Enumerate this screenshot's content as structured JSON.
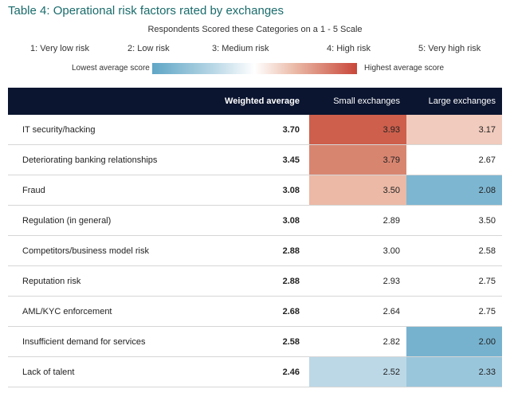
{
  "title": "Table 4: Operational risk factors rated by exchanges",
  "subtitle": "Respondents Scored these Categories on a 1 - 5 Scale",
  "scale": [
    "1: Very low risk",
    "2: Low risk",
    "3: Medium risk",
    "4: High risk",
    "5: Very high risk"
  ],
  "legend": {
    "low_label": "Lowest average score",
    "high_label": "Highest average score",
    "low_color": "#5fa6c6",
    "high_color": "#c8473a"
  },
  "table": {
    "headers": {
      "name": "",
      "weighted": "Weighted average",
      "small": "Small exchanges",
      "large": "Large exchanges"
    },
    "rows": [
      {
        "name": "IT security/hacking",
        "weighted": "3.70",
        "small": "3.93",
        "large": "3.17",
        "small_color": "#cd5f4c",
        "large_color": "#f1cbbd"
      },
      {
        "name": "Deteriorating banking relationships",
        "weighted": "3.45",
        "small": "3.79",
        "large": "2.67",
        "small_color": "#d88570",
        "large_color": "#ffffff"
      },
      {
        "name": "Fraud",
        "weighted": "3.08",
        "small": "3.50",
        "large": "2.08",
        "small_color": "#ebb9a6",
        "large_color": "#7db6d1"
      },
      {
        "name": "Regulation (in general)",
        "weighted": "3.08",
        "small": "2.89",
        "large": "3.50",
        "small_color": "#ffffff",
        "large_color": "#ffffff"
      },
      {
        "name": "Competitors/business model risk",
        "weighted": "2.88",
        "small": "3.00",
        "large": "2.58",
        "small_color": "#ffffff",
        "large_color": "#ffffff"
      },
      {
        "name": "Reputation risk",
        "weighted": "2.88",
        "small": "2.93",
        "large": "2.75",
        "small_color": "#ffffff",
        "large_color": "#ffffff"
      },
      {
        "name": "AML/KYC enforcement",
        "weighted": "2.68",
        "small": "2.64",
        "large": "2.75",
        "small_color": "#ffffff",
        "large_color": "#ffffff"
      },
      {
        "name": "Insufficient demand for services",
        "weighted": "2.58",
        "small": "2.82",
        "large": "2.00",
        "small_color": "#ffffff",
        "large_color": "#76b2ce"
      },
      {
        "name": "Lack of talent",
        "weighted": "2.46",
        "small": "2.52",
        "large": "2.33",
        "small_color": "#bcd8e7",
        "large_color": "#9ac6db"
      }
    ]
  }
}
